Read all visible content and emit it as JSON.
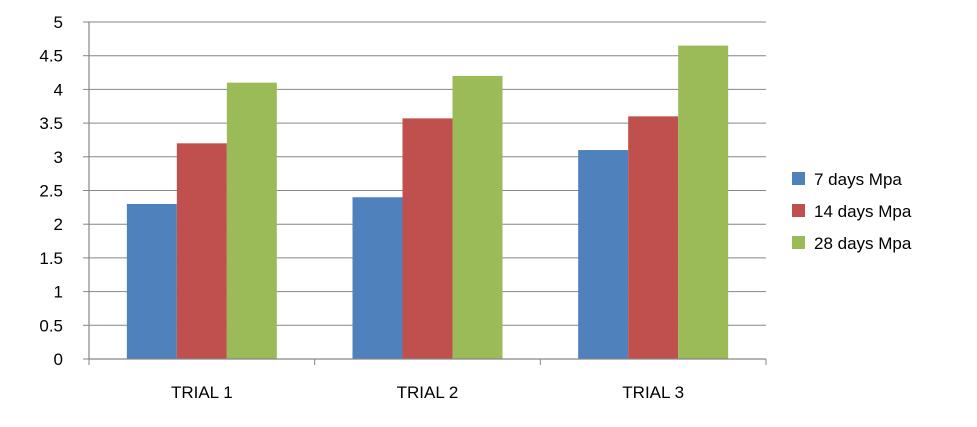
{
  "chart_data": {
    "type": "bar",
    "title": "",
    "xlabel": "",
    "ylabel": "",
    "categories": [
      "TRIAL 1",
      "TRIAL 2",
      "TRIAL 3"
    ],
    "series": [
      {
        "name": "7 days Mpa",
        "color": "#4F81BD",
        "values": [
          2.3,
          2.4,
          3.1
        ]
      },
      {
        "name": "14 days Mpa",
        "color": "#C0504D",
        "values": [
          3.2,
          3.57,
          3.6
        ]
      },
      {
        "name": "28 days Mpa",
        "color": "#9BBB59",
        "values": [
          4.1,
          4.2,
          4.65
        ]
      }
    ],
    "ylim": [
      0,
      5
    ],
    "yticks": [
      "0",
      "0.5",
      "1",
      "1.5",
      "2",
      "2.5",
      "3",
      "3.5",
      "4",
      "4.5",
      "5"
    ],
    "grid": true,
    "legend_position": "right"
  }
}
